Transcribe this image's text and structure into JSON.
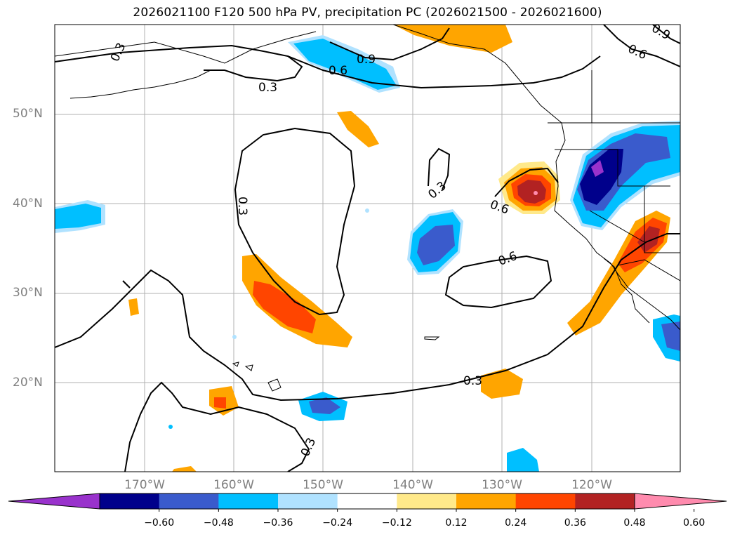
{
  "title": "2026021100 F120 500 hPa PV, precipitation PC (2026021500 - 2026021600)",
  "map": {
    "lat_labels": [
      "50°N",
      "40°N",
      "30°N",
      "20°N"
    ],
    "lon_labels": [
      "170°W",
      "160°W",
      "150°W",
      "140°W",
      "130°W",
      "120°W"
    ],
    "contour_labels": [
      "0.3",
      "0.9",
      "0.6",
      "0.3",
      "0.9",
      "0.6",
      "0.3",
      "0.3",
      "0.6",
      "0.6",
      "0.3",
      "0.3"
    ]
  },
  "colorbar": {
    "ticks": [
      "−0.60",
      "−0.48",
      "−0.36",
      "−0.24",
      "−0.12",
      "0.12",
      "0.24",
      "0.36",
      "0.48",
      "0.60"
    ],
    "colors": [
      "#9932cc",
      "#00008b",
      "#3a5bcc",
      "#00bfff",
      "#b0e2ff",
      "#ffffff",
      "#ffe98a",
      "#ffa500",
      "#ff4500",
      "#b22222",
      "#ff8bae"
    ]
  }
}
